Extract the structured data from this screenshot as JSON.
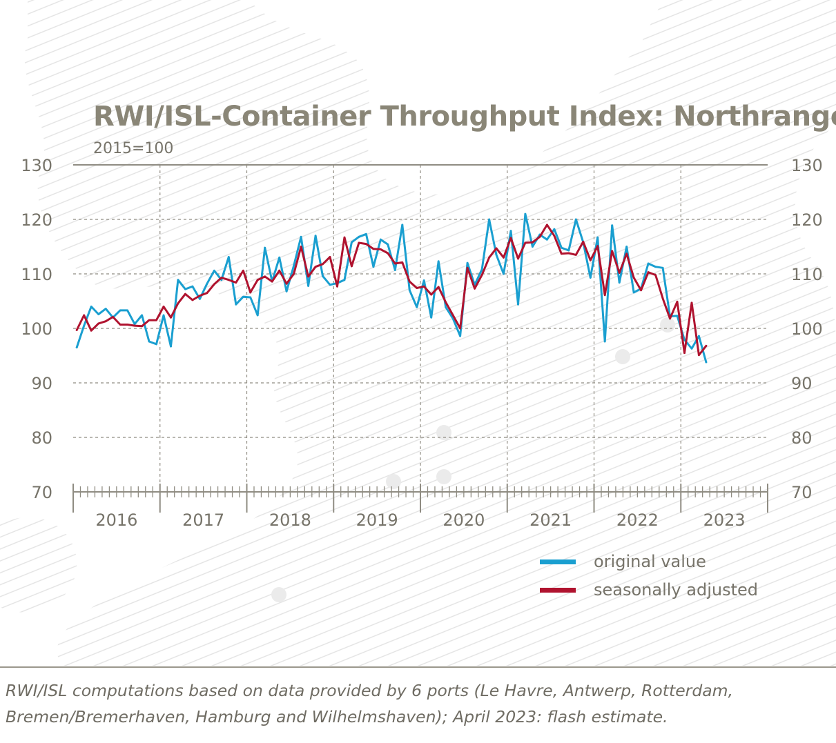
{
  "chart_data": {
    "type": "line",
    "title": "RWI/ISL-Container Throughput Index: Northrange",
    "subtitle": "2015=100",
    "xlabel": "",
    "ylabel": "",
    "x_start": "2016-01",
    "x_tick_labels": [
      "2016",
      "2017",
      "2018",
      "2019",
      "2020",
      "2021",
      "2022",
      "2023"
    ],
    "y_tick_labels": [
      "130",
      "120",
      "110",
      "100",
      "90",
      "80",
      "70"
    ],
    "ylim": [
      70,
      130
    ],
    "grid": true,
    "legend_position": "bottom-right",
    "series": [
      {
        "name": "original value",
        "color": "#1a9fd0",
        "values": [
          96.5,
          100.5,
          104.0,
          102.6,
          103.6,
          102.0,
          103.3,
          103.3,
          100.8,
          102.4,
          97.6,
          97.1,
          102.4,
          96.7,
          108.9,
          107.2,
          107.7,
          105.4,
          108.2,
          110.6,
          108.9,
          113.1,
          104.4,
          105.8,
          105.7,
          102.4,
          114.8,
          108.6,
          113.0,
          106.8,
          111.5,
          116.8,
          107.8,
          117.0,
          109.6,
          108.0,
          108.3,
          108.9,
          115.8,
          116.8,
          117.3,
          111.3,
          116.3,
          115.4,
          110.7,
          119.0,
          107.0,
          103.9,
          108.8,
          102.0,
          112.3,
          103.9,
          101.8,
          98.6,
          112.0,
          108.0,
          110.8,
          120.0,
          113.5,
          110.0,
          117.9,
          104.4,
          121.0,
          115.0,
          117.2,
          116.3,
          118.2,
          114.8,
          114.3,
          120.0,
          115.8,
          109.3,
          116.7,
          97.6,
          118.9,
          108.4,
          115.0,
          106.6,
          107.3,
          111.9,
          111.3,
          111.1,
          102.2,
          102.3,
          97.9,
          96.3,
          98.6,
          93.8
        ]
      },
      {
        "name": "seasonally adjusted",
        "color": "#b0132f",
        "values": [
          99.7,
          102.4,
          99.6,
          100.9,
          101.3,
          102.1,
          100.7,
          100.7,
          100.5,
          100.4,
          101.5,
          101.5,
          104.0,
          102.0,
          104.6,
          106.3,
          105.2,
          106.0,
          106.5,
          108.1,
          109.3,
          108.9,
          108.4,
          110.6,
          106.6,
          108.9,
          109.5,
          108.6,
          110.6,
          108.2,
          110.0,
          115.0,
          109.5,
          111.3,
          111.8,
          113.1,
          107.7,
          116.7,
          111.4,
          115.7,
          115.5,
          114.6,
          114.5,
          113.8,
          111.9,
          112.1,
          108.6,
          107.4,
          107.7,
          106.2,
          107.6,
          104.8,
          102.4,
          100.0,
          111.1,
          107.3,
          109.8,
          113.0,
          114.7,
          113.0,
          116.6,
          112.8,
          115.7,
          115.8,
          116.8,
          119.0,
          117.0,
          113.7,
          113.8,
          113.5,
          115.9,
          112.5,
          115.1,
          106.1,
          114.2,
          110.2,
          113.7,
          109.3,
          107.0,
          110.3,
          109.8,
          105.5,
          101.8,
          104.9,
          95.5,
          104.7,
          95.1,
          96.8
        ]
      }
    ]
  },
  "legend": {
    "items": [
      {
        "label": "original value",
        "color": "#1a9fd0"
      },
      {
        "label": "seasonally adjusted",
        "color": "#b0132f"
      }
    ]
  },
  "footnote": {
    "line1": "RWI/ISL computations based on data provided by 6 ports (Le Havre, Antwerp, Rotterdam,",
    "line2": "Bremen/Bremerhaven, Hamburg and Wilhelmshaven); April 2023: flash estimate."
  }
}
